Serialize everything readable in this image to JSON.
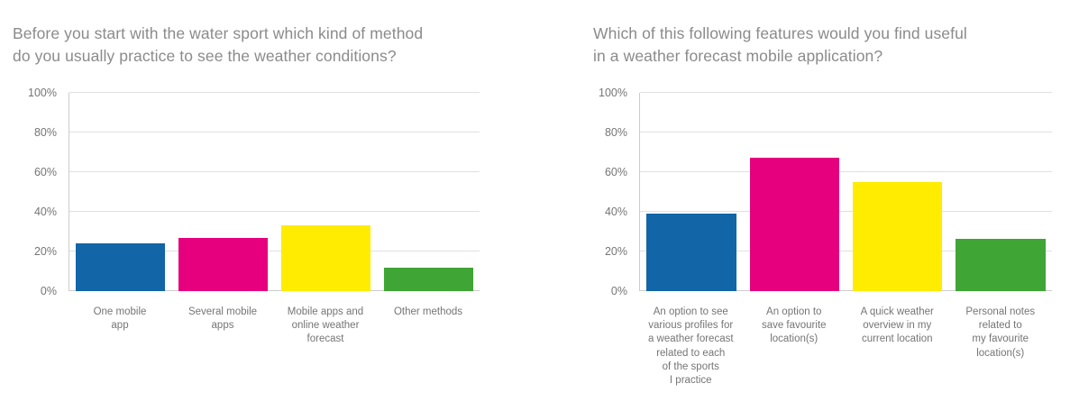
{
  "page": {
    "background": "#ffffff"
  },
  "palette": {
    "bar_blue": "#1265a7",
    "bar_pink": "#e6007e",
    "bar_yellow": "#ffec00",
    "bar_green": "#3fa535",
    "gridline": "#e0e0e0",
    "axis_line": "#cccccc",
    "title_text": "#8b8b8b",
    "tick_text": "#757575",
    "category_text": "#757575"
  },
  "chart_data": [
    {
      "type": "bar",
      "title": "Before you start with the water sport which kind of method\ndo you usually practice to see the weather conditions?",
      "categories": [
        "One mobile\napp",
        "Several mobile\napps",
        "Mobile apps and\nonline weather\nforecast",
        "Other methods"
      ],
      "values": [
        24,
        27,
        33,
        12
      ],
      "bar_colors": [
        "#1265a7",
        "#e6007e",
        "#ffec00",
        "#3fa535"
      ],
      "xlabel": "",
      "ylabel": "",
      "ylim": [
        0,
        100
      ],
      "yticks": [
        "0%",
        "20%",
        "40%",
        "60%",
        "80%",
        "100%"
      ],
      "grid": true,
      "legend": false
    },
    {
      "type": "bar",
      "title": "Which of this following features would you find useful\nin a weather forecast mobile application?",
      "categories": [
        "An option to see\nvarious profiles for\na weather forecast\nrelated to each\nof the sports\nI practice",
        "An option to\nsave favourite\nlocation(s)",
        "A quick weather\noverview in my\ncurrent location",
        "Personal notes\nrelated to\nmy favourite\nlocation(s)"
      ],
      "values": [
        39,
        67.5,
        55,
        26.5
      ],
      "bar_colors": [
        "#1265a7",
        "#e6007e",
        "#ffec00",
        "#3fa535"
      ],
      "xlabel": "",
      "ylabel": "",
      "ylim": [
        0,
        100
      ],
      "yticks": [
        "0%",
        "20%",
        "40%",
        "60%",
        "80%",
        "100%"
      ],
      "grid": true,
      "legend": false
    }
  ]
}
